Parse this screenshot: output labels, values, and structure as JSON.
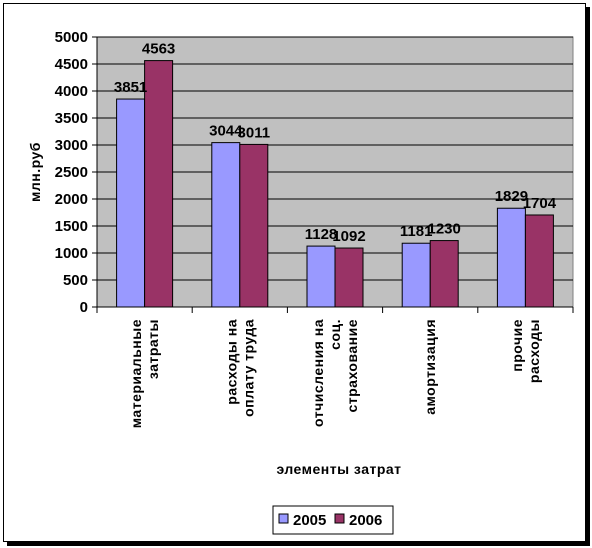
{
  "chart_data": {
    "type": "bar",
    "title": "",
    "xlabel": "элементы затрат",
    "ylabel": "млн.руб",
    "ylim": [
      0,
      5000
    ],
    "yticks": [
      0,
      500,
      1000,
      1500,
      2000,
      2500,
      3000,
      3500,
      4000,
      4500,
      5000
    ],
    "grid": true,
    "legend_position": "bottom",
    "categories": [
      [
        "материальные",
        "затраты"
      ],
      [
        "расходы на",
        "оплату труда"
      ],
      [
        "отчисления на",
        "соц.",
        "страхование"
      ],
      [
        "амортизация"
      ],
      [
        "прочие",
        "расходы"
      ]
    ],
    "series": [
      {
        "name": "2005",
        "color": "#9999FF",
        "values": [
          3851,
          3044,
          1128,
          1181,
          1829
        ]
      },
      {
        "name": "2006",
        "color": "#993366",
        "values": [
          4563,
          3011,
          1092,
          1230,
          1704
        ]
      }
    ],
    "plot_background": "#C0C0C0"
  }
}
